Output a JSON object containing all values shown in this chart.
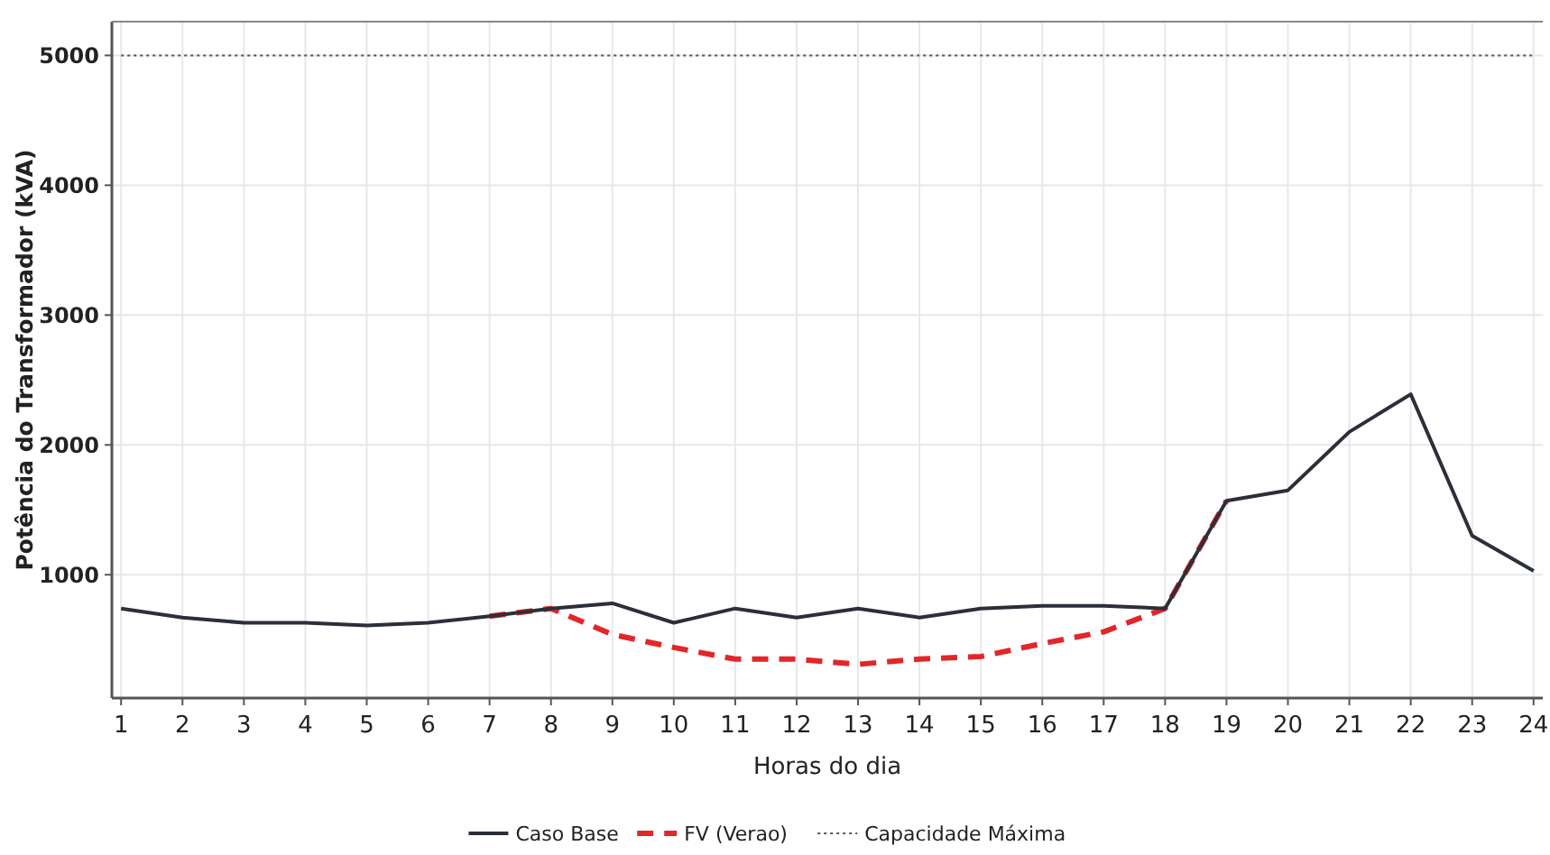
{
  "chart_data": {
    "type": "line",
    "xlabel": "Horas do dia",
    "ylabel": "Potência do Transformador (kVA)",
    "x": [
      1,
      2,
      3,
      4,
      5,
      6,
      7,
      8,
      9,
      10,
      11,
      12,
      13,
      14,
      15,
      16,
      17,
      18,
      19,
      20,
      21,
      22,
      23,
      24
    ],
    "xlim": [
      0.85,
      24.15
    ],
    "xticks": [
      1,
      2,
      3,
      4,
      5,
      6,
      7,
      8,
      9,
      10,
      11,
      12,
      13,
      14,
      15,
      16,
      17,
      18,
      19,
      20,
      21,
      22,
      23,
      24
    ],
    "ylim": [
      50,
      5260
    ],
    "yticks": [
      1000,
      2000,
      3000,
      4000,
      5000
    ],
    "grid": true,
    "legend": "bottom",
    "marker": "none",
    "series": [
      {
        "name": "Caso Base",
        "color": "#2b2f3a",
        "line_style": "solid",
        "values": [
          740,
          670,
          630,
          630,
          610,
          630,
          680,
          740,
          780,
          630,
          740,
          670,
          740,
          670,
          740,
          760,
          760,
          740,
          1570,
          1650,
          2100,
          2390,
          1300,
          1030
        ]
      },
      {
        "name": "FV (Verao)",
        "color": "#e3262a",
        "line_style": "dashed",
        "values": [
          null,
          null,
          null,
          null,
          null,
          null,
          680,
          740,
          540,
          440,
          350,
          350,
          310,
          350,
          370,
          470,
          560,
          740,
          1570,
          null,
          null,
          null,
          null,
          null
        ]
      },
      {
        "name": "Capacidade Máxima",
        "color": "#555555",
        "line_style": "dotted",
        "values": [
          5000,
          5000,
          5000,
          5000,
          5000,
          5000,
          5000,
          5000,
          5000,
          5000,
          5000,
          5000,
          5000,
          5000,
          5000,
          5000,
          5000,
          5000,
          5000,
          5000,
          5000,
          5000,
          5000,
          5000
        ]
      }
    ]
  }
}
